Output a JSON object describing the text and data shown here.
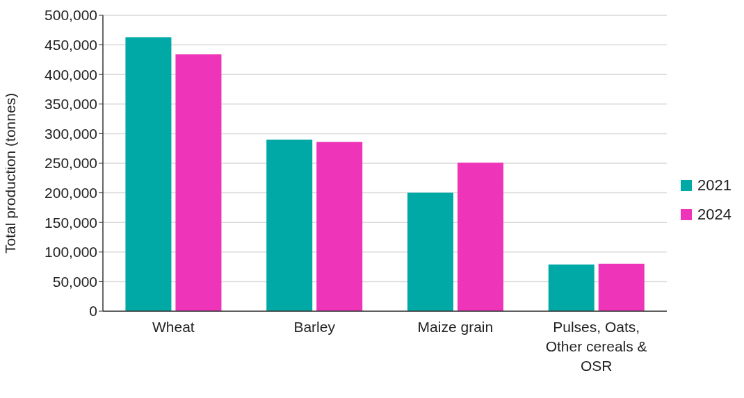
{
  "chart_data": {
    "type": "bar",
    "ylabel": "Total production (tonnes)",
    "categories": [
      "Wheat",
      "Barley",
      "Maize grain",
      "Pulses, Oats, Other cereals & OSR"
    ],
    "series": [
      {
        "name": "2021",
        "color": "#00a9a5",
        "values": [
          463000,
          290000,
          200000,
          79000
        ]
      },
      {
        "name": "2024",
        "color": "#ee35b9",
        "values": [
          434000,
          286000,
          251000,
          80000
        ]
      }
    ],
    "ylim": [
      0,
      500000
    ],
    "yticks": [
      0,
      {
        "value": 50000,
        "label": "50,000"
      },
      {
        "value": 100000,
        "label": "100,000"
      },
      {
        "value": 150000,
        "label": "150,000"
      },
      {
        "value": 200000,
        "label": "200,000"
      },
      {
        "value": 250000,
        "label": "250,000"
      },
      {
        "value": 300000,
        "label": "300,000"
      },
      {
        "value": 350000,
        "label": "350,000"
      },
      {
        "value": 400000,
        "label": "400,000"
      },
      {
        "value": 450000,
        "label": "450,000"
      },
      {
        "value": 500000,
        "label": "500,000"
      }
    ],
    "grid": "y",
    "legend": "right"
  }
}
